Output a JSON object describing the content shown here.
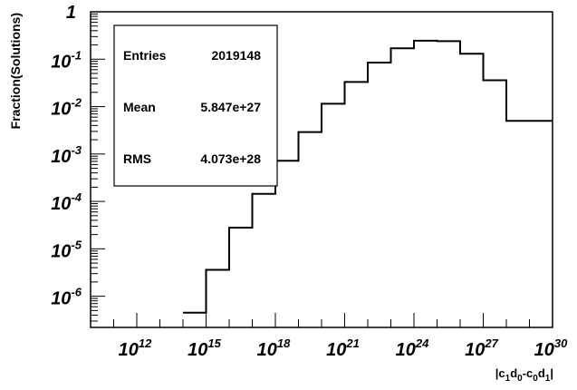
{
  "chart_data": {
    "type": "bar",
    "style": "step-histogram",
    "xlabel_parts": [
      "|c",
      "1",
      "d",
      "0",
      "-c",
      "0",
      "d",
      "1",
      "|"
    ],
    "ylabel": "Fraction(Solutions)",
    "x_scale": "log",
    "y_scale": "log",
    "xlim": [
      10000000000.0,
      1e+30
    ],
    "ylim": [
      2.2e-07,
      1
    ],
    "grid": false,
    "x_tick_labels": [
      {
        "base": "10",
        "exp": "12"
      },
      {
        "base": "10",
        "exp": "15"
      },
      {
        "base": "10",
        "exp": "18"
      },
      {
        "base": "10",
        "exp": "21"
      },
      {
        "base": "10",
        "exp": "24"
      },
      {
        "base": "10",
        "exp": "27"
      },
      {
        "base": "10",
        "exp": "30"
      }
    ],
    "y_tick_labels": [
      {
        "base": "1",
        "exp": ""
      },
      {
        "base": "10",
        "exp": "-1"
      },
      {
        "base": "10",
        "exp": "-2"
      },
      {
        "base": "10",
        "exp": "-3"
      },
      {
        "base": "10",
        "exp": "-4"
      },
      {
        "base": "10",
        "exp": "-5"
      },
      {
        "base": "10",
        "exp": "-6"
      }
    ],
    "bin_edges_log10": [
      10,
      11,
      12,
      13,
      14,
      15,
      16,
      17,
      18,
      19,
      20,
      21,
      22,
      23,
      24,
      25,
      26,
      27,
      28,
      29,
      30
    ],
    "values": [
      0,
      0,
      0,
      0,
      4.5e-07,
      3.6e-06,
      2.8e-05,
      0.000145,
      0.00072,
      0.0029,
      0.0115,
      0.033,
      0.085,
      0.17,
      0.245,
      0.24,
      0.13,
      0.036,
      0.005,
      0.005
    ],
    "legend_position": "top-left",
    "stats": {
      "entries_label": "Entries",
      "entries_value": "2019148",
      "mean_label": "Mean",
      "mean_value": "5.847e+27",
      "rms_label": "RMS",
      "rms_value": "4.073e+28"
    }
  }
}
